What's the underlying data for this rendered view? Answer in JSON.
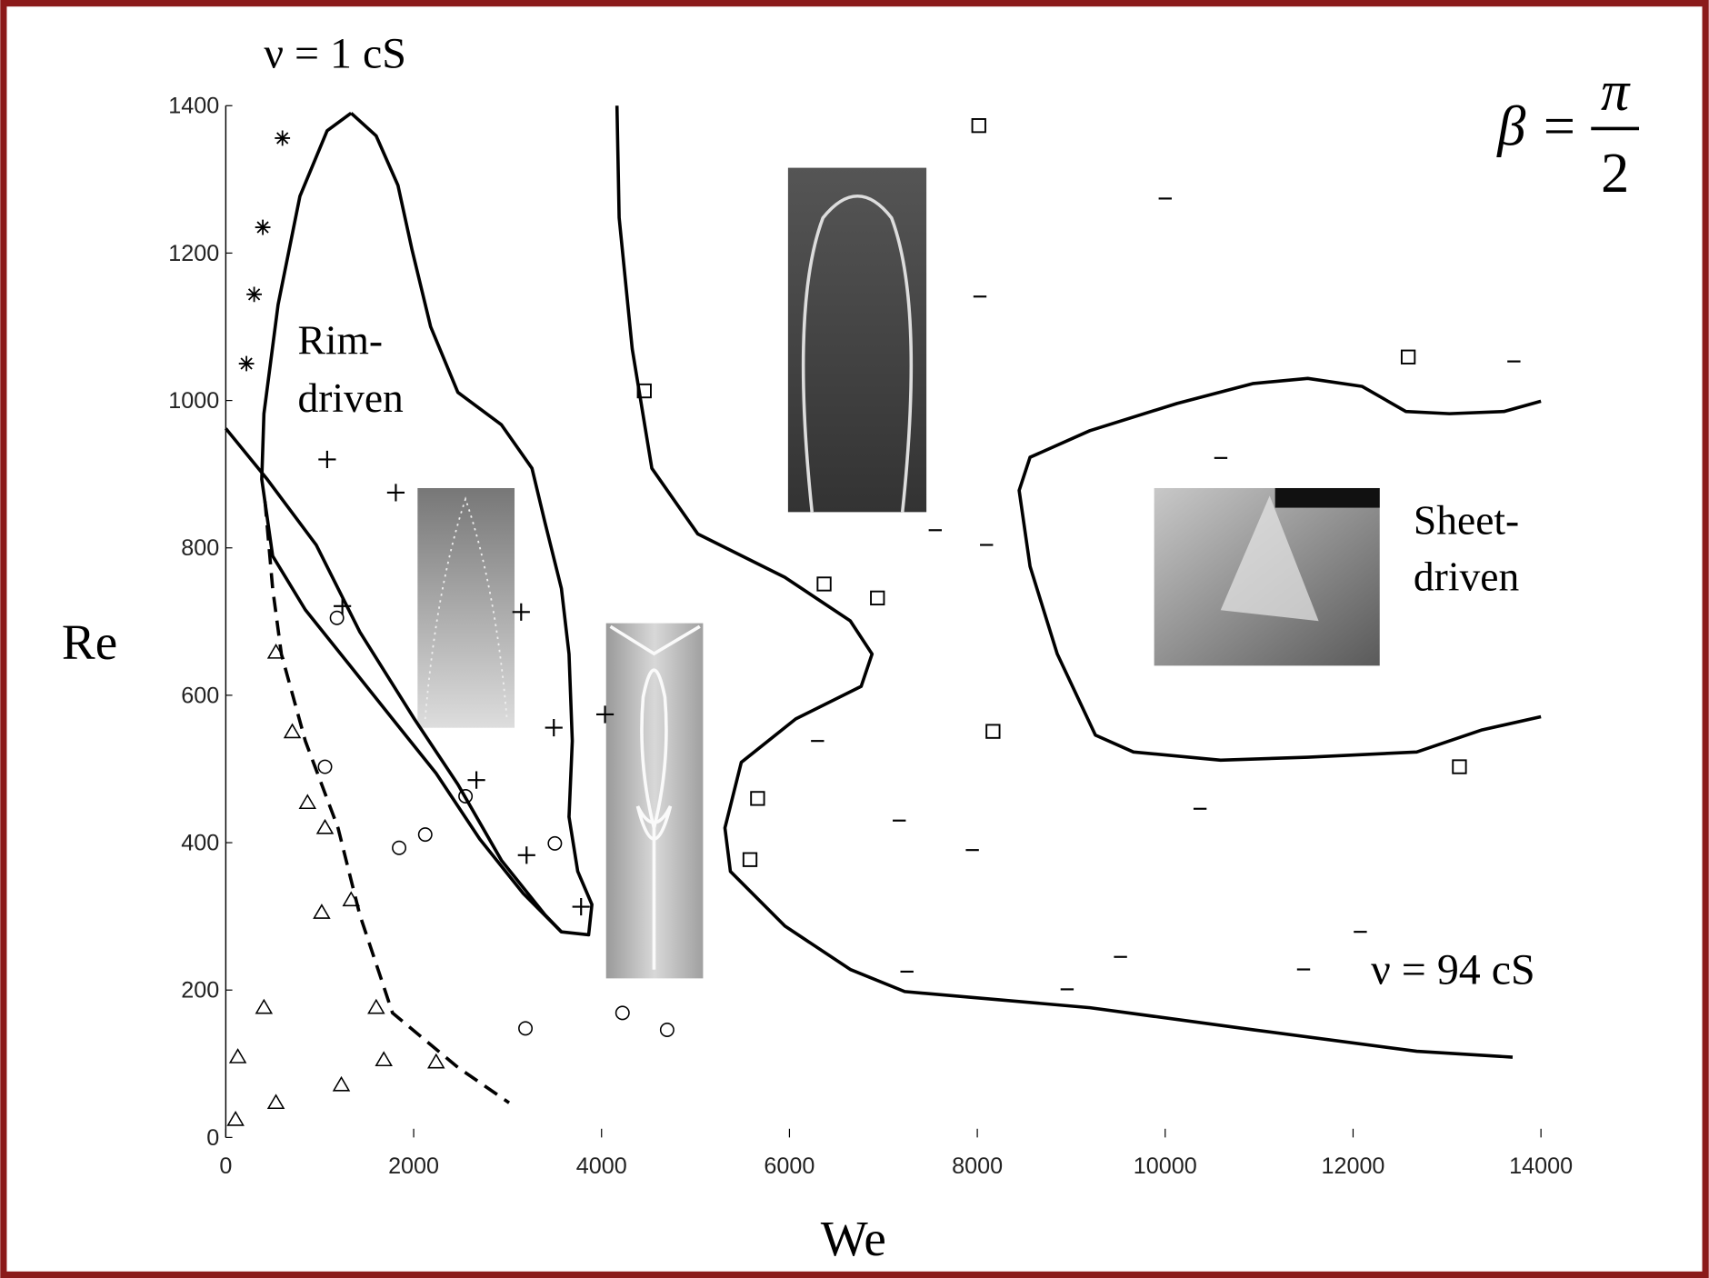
{
  "chart_data": {
    "type": "scatter",
    "xlabel": "We",
    "ylabel": "Re",
    "xlim": [
      0,
      14000
    ],
    "ylim": [
      0,
      1400
    ],
    "xticks": [
      0,
      2000,
      4000,
      6000,
      8000,
      10000,
      12000,
      14000
    ],
    "yticks": [
      0,
      200,
      400,
      600,
      800,
      1000,
      1200,
      1400
    ],
    "annotations": [
      {
        "text": "ν = 1 cS"
      },
      {
        "text": "ν = 94 cS"
      },
      {
        "text": "β =",
        "numerator": "π",
        "denominator": "2"
      },
      {
        "lines": [
          "Rim-",
          "driven"
        ],
        "color": "#8b1a1a"
      },
      {
        "lines": [
          "Sheet-",
          "driven"
        ],
        "color": "#1a1aa6"
      }
    ],
    "series": [
      {
        "marker": "square",
        "color": "#000",
        "x": [
          8016,
          4455,
          6369,
          6937,
          5661,
          5580,
          8167,
          12587,
          13132
        ],
        "values": [
          1373,
          1013,
          751,
          732,
          460,
          377,
          551,
          1059,
          503
        ]
      },
      {
        "marker": "circle",
        "color": "#000",
        "x": [
          2123,
          1056,
          3190,
          4223,
          4698,
          1845,
          2552,
          3503,
          1183
        ],
        "values": [
          411,
          503,
          148,
          169,
          146,
          393,
          463,
          399,
          705
        ]
      },
      {
        "marker": "triangle",
        "color": "#000",
        "x": [
          534,
          1230,
          1601,
          1682,
          2239,
          406,
          870,
          1056,
          708,
          534,
          104,
          128,
          1021,
          1334
        ],
        "values": [
          47,
          71,
          176,
          105,
          102,
          176,
          454,
          420,
          550,
          658,
          24,
          109,
          305,
          322
        ]
      },
      {
        "marker": "plus",
        "color": "#000",
        "x": [
          1079,
          1810,
          1241,
          3144,
          3492,
          2668,
          3202,
          3782,
          4037
        ],
        "values": [
          920,
          875,
          721,
          713,
          556,
          485,
          383,
          313,
          574
        ]
      },
      {
        "marker": "star",
        "color": "#000",
        "x": [
          603,
          394,
          302,
          220
        ],
        "values": [
          1356,
          1235,
          1144,
          1050
        ]
      },
      {
        "marker": "dash",
        "color": "#000",
        "x": [
          10000,
          8028,
          10592,
          7552,
          8098,
          6299,
          7169,
          7947,
          10371,
          7251,
          12077,
          9524,
          8956,
          11473,
          13712
        ],
        "values": [
          1274,
          1141,
          922,
          824,
          804,
          538,
          430,
          390,
          446,
          225,
          279,
          245,
          201,
          228,
          1053
        ]
      }
    ],
    "curves": [
      {
        "dashed": false,
        "x": [
          1334,
          1601,
          1833,
          1984,
          2181,
          2471,
          2935,
          3259,
          3398,
          3572,
          3654,
          3689,
          3654,
          3747,
          3897,
          3863,
          3572,
          3167,
          2703,
          2239,
          1775,
          1311,
          847,
          499,
          383,
          406,
          557,
          789,
          1079,
          1334
        ],
        "y": [
          1390,
          1359,
          1292,
          1204,
          1100,
          1011,
          967,
          908,
          834,
          745,
          656,
          538,
          435,
          361,
          316,
          275,
          279,
          331,
          405,
          494,
          568,
          642,
          716,
          789,
          893,
          982,
          1130,
          1277,
          1366,
          1390
        ]
      },
      {
        "dashed": true,
        "x": [
          418,
          499,
          592,
          847,
          1195,
          1427,
          1775,
          2471,
          3016
        ],
        "y": [
          863,
          745,
          656,
          538,
          420,
          302,
          169,
          95,
          47
        ]
      },
      {
        "dashed": false,
        "x": [
          0,
          441,
          963,
          1427,
          2007,
          2471,
          2935,
          3398,
          3572
        ],
        "y": [
          962,
          893,
          804,
          686,
          568,
          479,
          376,
          302,
          279
        ]
      },
      {
        "dashed": false,
        "x": [
          4164,
          4187,
          4327,
          4535,
          5023,
          5951,
          6647,
          6879,
          6763,
          6067,
          5487,
          5313,
          5371,
          5951,
          6647,
          7227,
          9198,
          10938,
          12678,
          13699
        ],
        "y": [
          1400,
          1248,
          1070,
          908,
          819,
          760,
          701,
          656,
          612,
          568,
          509,
          420,
          361,
          287,
          228,
          198,
          176,
          146,
          117,
          109
        ]
      },
      {
        "dashed": false,
        "x": [
          14000,
          13606,
          13026,
          12562,
          12098,
          11518,
          10938,
          10126,
          9198,
          8561,
          8445,
          8561,
          8851,
          9257,
          9662,
          10590,
          11518,
          12678,
          13374,
          14000
        ],
        "y": [
          999,
          985,
          982,
          985,
          1019,
          1030,
          1023,
          996,
          959,
          923,
          878,
          775,
          656,
          546,
          523,
          512,
          516,
          523,
          553,
          571
        ]
      }
    ]
  }
}
